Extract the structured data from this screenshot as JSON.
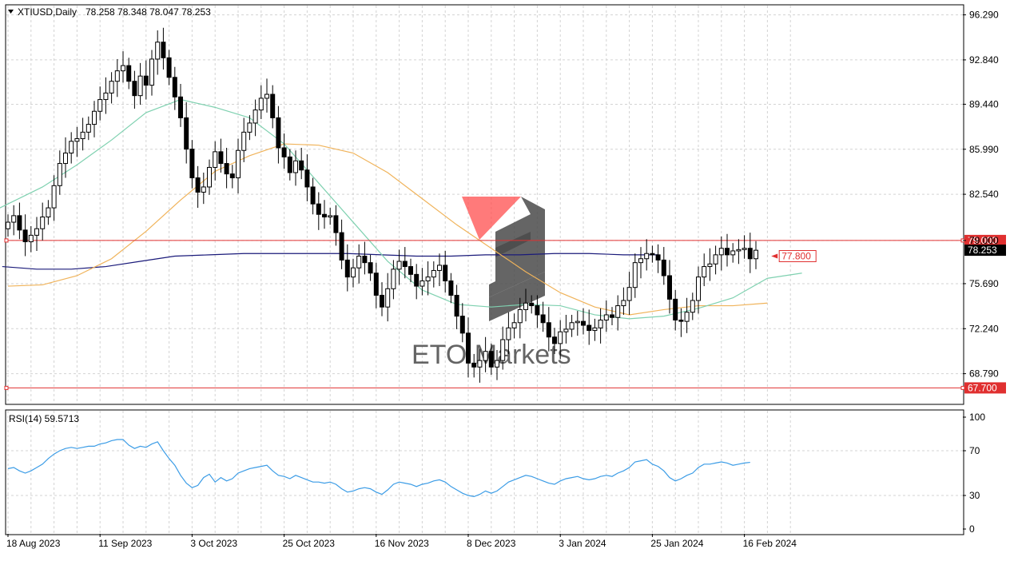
{
  "header": {
    "symbol": "XTIUSD,Daily",
    "ohlc": "78.258 78.348 78.047 78.253"
  },
  "rsi_label": "RSI(14) 59.5713",
  "watermark": {
    "text": "ETO Markets",
    "logo_colors": [
      "#ff4d4d",
      "#4a4a4a"
    ]
  },
  "colors": {
    "grid": "#d3d3d3",
    "ma_fast": "#7fd1b0",
    "ma_mid": "#f0b35a",
    "ma_slow": "#1a1a7a",
    "level_line": "#e03030",
    "rsi_line": "#3b9ce6",
    "candle": "#000000"
  },
  "chart_data": [
    {
      "type": "candlestick",
      "title": "XTIUSD,Daily",
      "ylim": [
        66.5,
        97.0
      ],
      "y_ticks": [
        "96.290",
        "92.840",
        "89.440",
        "85.990",
        "82.540",
        "79.000",
        "75.690",
        "72.240",
        "68.790"
      ],
      "y_tick_values": [
        96.29,
        92.84,
        89.44,
        85.99,
        82.54,
        79.0,
        75.69,
        72.24,
        68.79
      ],
      "x_tick_labels": [
        "18 Aug 2023",
        "11 Sep 2023",
        "3 Oct 2023",
        "25 Oct 2023",
        "16 Nov 2023",
        "8 Dec 2023",
        "3 Jan 2024",
        "25 Jan 2024",
        "16 Feb 2024"
      ],
      "x_tick_index": [
        0,
        16,
        32,
        48,
        64,
        80,
        96,
        112,
        128
      ],
      "closes": [
        80.4,
        80.9,
        79.8,
        78.9,
        79.4,
        79.9,
        80.8,
        81.5,
        83.2,
        84.9,
        85.7,
        86.6,
        86.8,
        87.3,
        87.9,
        88.9,
        89.8,
        90.3,
        91.2,
        92.0,
        92.4,
        91.2,
        90.1,
        91.6,
        90.9,
        92.9,
        94.2,
        93.0,
        91.5,
        90.0,
        88.4,
        86.0,
        83.8,
        82.7,
        83.1,
        84.6,
        85.8,
        84.9,
        84.1,
        83.8,
        85.9,
        87.3,
        88.0,
        89.0,
        89.9,
        90.2,
        88.4,
        86.1,
        85.4,
        84.2,
        85.1,
        84.4,
        83.1,
        81.8,
        81.0,
        80.8,
        80.9,
        79.6,
        77.5,
        76.2,
        76.9,
        77.8,
        77.3,
        76.5,
        74.8,
        73.9,
        75.3,
        76.8,
        77.4,
        77.0,
        76.4,
        75.5,
        75.9,
        76.2,
        76.7,
        77.1,
        75.9,
        74.8,
        73.2,
        71.9,
        69.6,
        69.3,
        69.8,
        70.5,
        69.3,
        69.8,
        71.4,
        72.3,
        72.7,
        73.7,
        74.2,
        74.0,
        73.3,
        72.7,
        71.6,
        71.1,
        72.0,
        72.2,
        72.7,
        72.8,
        72.5,
        72.1,
        72.3,
        72.9,
        73.3,
        73.1,
        74.0,
        74.4,
        75.4,
        77.3,
        77.6,
        78.0,
        77.9,
        77.5,
        76.3,
        74.5,
        72.9,
        72.8,
        73.5,
        74.4,
        76.2,
        77.0,
        77.2,
        77.9,
        78.4,
        77.9,
        78.2,
        78.3,
        78.4,
        77.6,
        78.25
      ],
      "ma_fast": [
        79.7,
        80.5,
        81.8,
        83.1,
        84.8,
        86.7,
        88.8,
        89.8,
        89.2,
        88.4,
        86.4,
        83.4,
        80.4,
        77.4,
        75.2,
        74.1,
        73.9,
        74.1,
        74.0,
        73.3,
        73.0,
        73.2,
        73.8,
        74.6,
        76.1,
        76.5
      ],
      "ma_mid": [
        75.5,
        75.6,
        76.3,
        77.6,
        79.7,
        82.1,
        84.3,
        85.5,
        86.4,
        86.3,
        85.7,
        84.2,
        82.2,
        80.2,
        78.4,
        76.6,
        75.0,
        73.9,
        73.3,
        73.7,
        74.0,
        74.0,
        74.2
      ],
      "ma_slow": [
        77.0,
        76.8,
        76.8,
        77.0,
        77.4,
        77.8,
        77.9,
        78.0,
        78.0,
        78.0,
        78.0,
        77.9,
        77.8,
        77.8,
        77.9,
        77.9,
        78.0,
        78.0,
        77.9,
        77.9
      ],
      "levels": [
        {
          "value": 79.0,
          "label": "79.000"
        },
        {
          "value": 67.7,
          "label": "67.700"
        }
      ],
      "current_price": {
        "value": 78.253,
        "label": "78.253"
      },
      "annotation": {
        "value": 77.8,
        "label": "77.800"
      }
    },
    {
      "type": "line",
      "title": "RSI(14) 59.5713",
      "ylim": [
        0,
        100
      ],
      "y_ticks": [
        "100",
        "70",
        "30",
        "0"
      ],
      "y_tick_values": [
        100,
        70,
        30,
        0
      ],
      "values": [
        54,
        55,
        52,
        50,
        52,
        55,
        58,
        63,
        67,
        70,
        72,
        73,
        72,
        73,
        74,
        74,
        76,
        77,
        79,
        80,
        80,
        75,
        72,
        74,
        73,
        76,
        78,
        70,
        63,
        57,
        48,
        41,
        37,
        39,
        46,
        49,
        42,
        46,
        43,
        45,
        50,
        52,
        54,
        55,
        56,
        57,
        52,
        48,
        47,
        45,
        48,
        46,
        44,
        42,
        42,
        41,
        42,
        40,
        36,
        33,
        34,
        36,
        37,
        36,
        33,
        31,
        35,
        40,
        42,
        41,
        40,
        38,
        40,
        41,
        43,
        44,
        42,
        38,
        35,
        32,
        30,
        29,
        31,
        34,
        32,
        34,
        38,
        42,
        44,
        46,
        48,
        47,
        45,
        43,
        41,
        40,
        43,
        45,
        46,
        47,
        45,
        44,
        45,
        47,
        48,
        47,
        50,
        52,
        55,
        60,
        61,
        62,
        58,
        56,
        52,
        46,
        43,
        45,
        48,
        50,
        55,
        58,
        58,
        59,
        60,
        59,
        57,
        58,
        59,
        59.6
      ]
    }
  ]
}
